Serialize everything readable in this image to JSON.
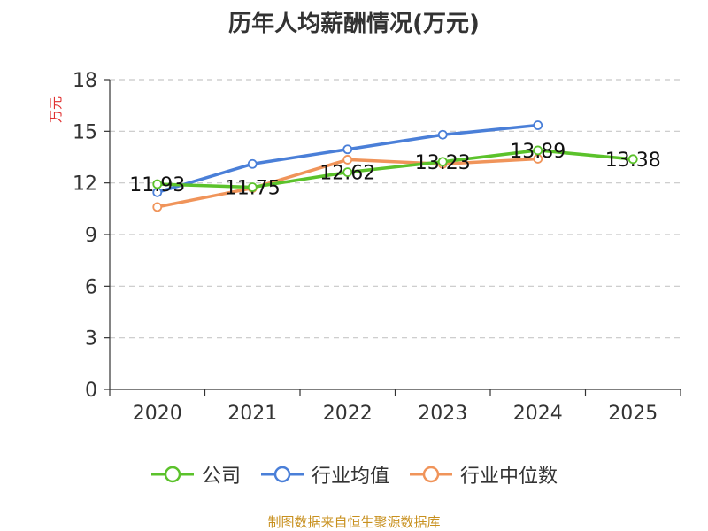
{
  "chart_data": {
    "type": "line",
    "title": "历年人均薪酬情况(万元)",
    "ylabel": "万元",
    "xlabel": "",
    "categories": [
      "2020",
      "2021",
      "2022",
      "2023",
      "2024",
      "2025"
    ],
    "ylim": [
      0,
      18
    ],
    "yticks": [
      0,
      3,
      6,
      9,
      12,
      15,
      18
    ],
    "grid": true,
    "series": [
      {
        "name": "公司",
        "color": "#5bc22b",
        "values": [
          11.93,
          11.75,
          12.62,
          13.23,
          13.89,
          13.38
        ],
        "labels": [
          "11.93",
          "11.75",
          "12.62",
          "13.23",
          "13.89",
          "13.38"
        ]
      },
      {
        "name": "行业均值",
        "color": "#4a7fd8",
        "values": [
          11.45,
          13.1,
          13.95,
          14.8,
          15.35,
          null
        ]
      },
      {
        "name": "行业中位数",
        "color": "#f0945a",
        "values": [
          10.6,
          11.7,
          13.35,
          13.1,
          13.4,
          null
        ]
      }
    ]
  },
  "footer": "制图数据来自恒生聚源数据库"
}
